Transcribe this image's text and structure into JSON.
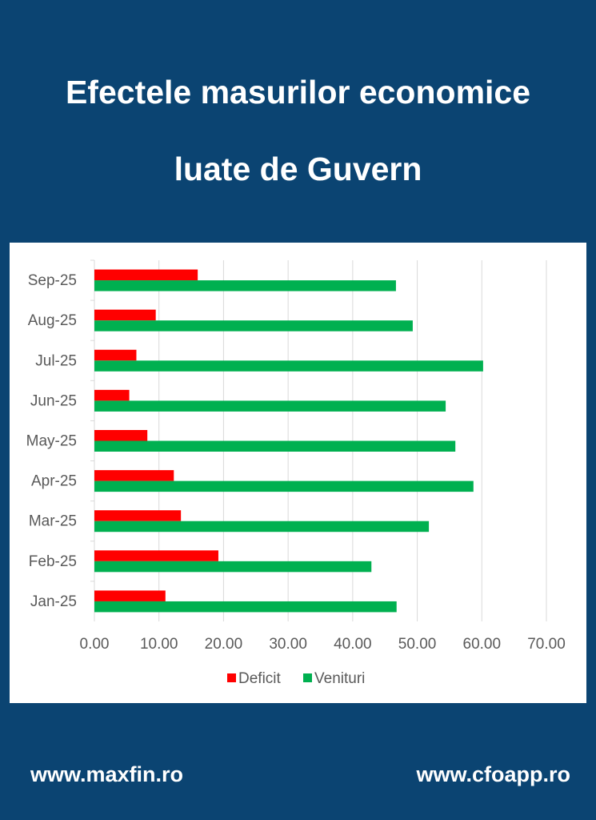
{
  "header": {
    "title_line1": "Efectele masurilor economice",
    "title_line2": "luate de Guvern"
  },
  "footer": {
    "left_link": "www.maxfin.ro",
    "right_link": "www.cfoapp.ro"
  },
  "chart_data": {
    "type": "bar",
    "orientation": "horizontal",
    "categories": [
      "Jan-25",
      "Feb-25",
      "Mar-25",
      "Apr-25",
      "May-25",
      "Jun-25",
      "Jul-25",
      "Aug-25",
      "Sep-25"
    ],
    "series": [
      {
        "name": "Deficit",
        "color": "#ff0000",
        "values": [
          11.0,
          19.2,
          13.4,
          12.3,
          8.2,
          5.4,
          6.5,
          9.5,
          16.0
        ]
      },
      {
        "name": "Venituri",
        "color": "#00b050",
        "values": [
          46.8,
          42.9,
          51.8,
          58.7,
          55.9,
          54.4,
          60.2,
          49.3,
          46.7
        ]
      }
    ],
    "xlim": [
      0,
      70
    ],
    "xticks": [
      "0.00",
      "10.00",
      "20.00",
      "30.00",
      "40.00",
      "50.00",
      "60.00",
      "70.00"
    ],
    "grid": true,
    "legend": "bottom"
  }
}
